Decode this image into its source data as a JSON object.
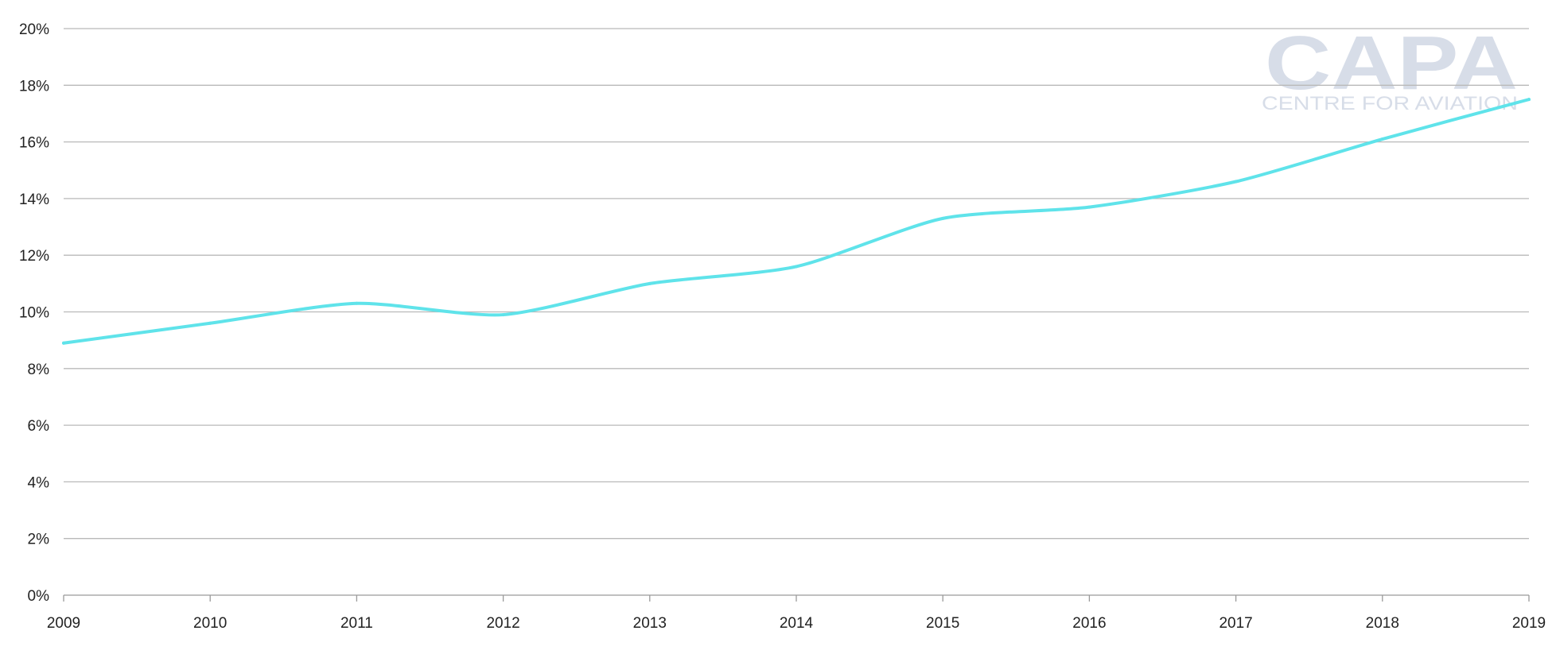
{
  "chart_data": {
    "type": "line",
    "x": [
      "2009",
      "2010",
      "2011",
      "2012",
      "2013",
      "2014",
      "2015",
      "2016",
      "2017",
      "2018",
      "2019"
    ],
    "series": [
      {
        "values": [
          8.9,
          9.6,
          10.3,
          9.9,
          11.0,
          11.6,
          13.3,
          13.7,
          14.6,
          16.1,
          17.5
        ]
      }
    ],
    "ylim": [
      0,
      20
    ],
    "yticks": [
      0,
      2,
      4,
      6,
      8,
      10,
      12,
      14,
      16,
      18,
      20
    ],
    "ytick_labels": [
      "0%",
      "2%",
      "4%",
      "6%",
      "8%",
      "10%",
      "12%",
      "14%",
      "16%",
      "18%",
      "20%"
    ],
    "grid": true,
    "line_color": "#5fe3ea"
  },
  "watermark": {
    "logo_text": "CAPA",
    "tagline": "CENTRE FOR AVIATION"
  }
}
